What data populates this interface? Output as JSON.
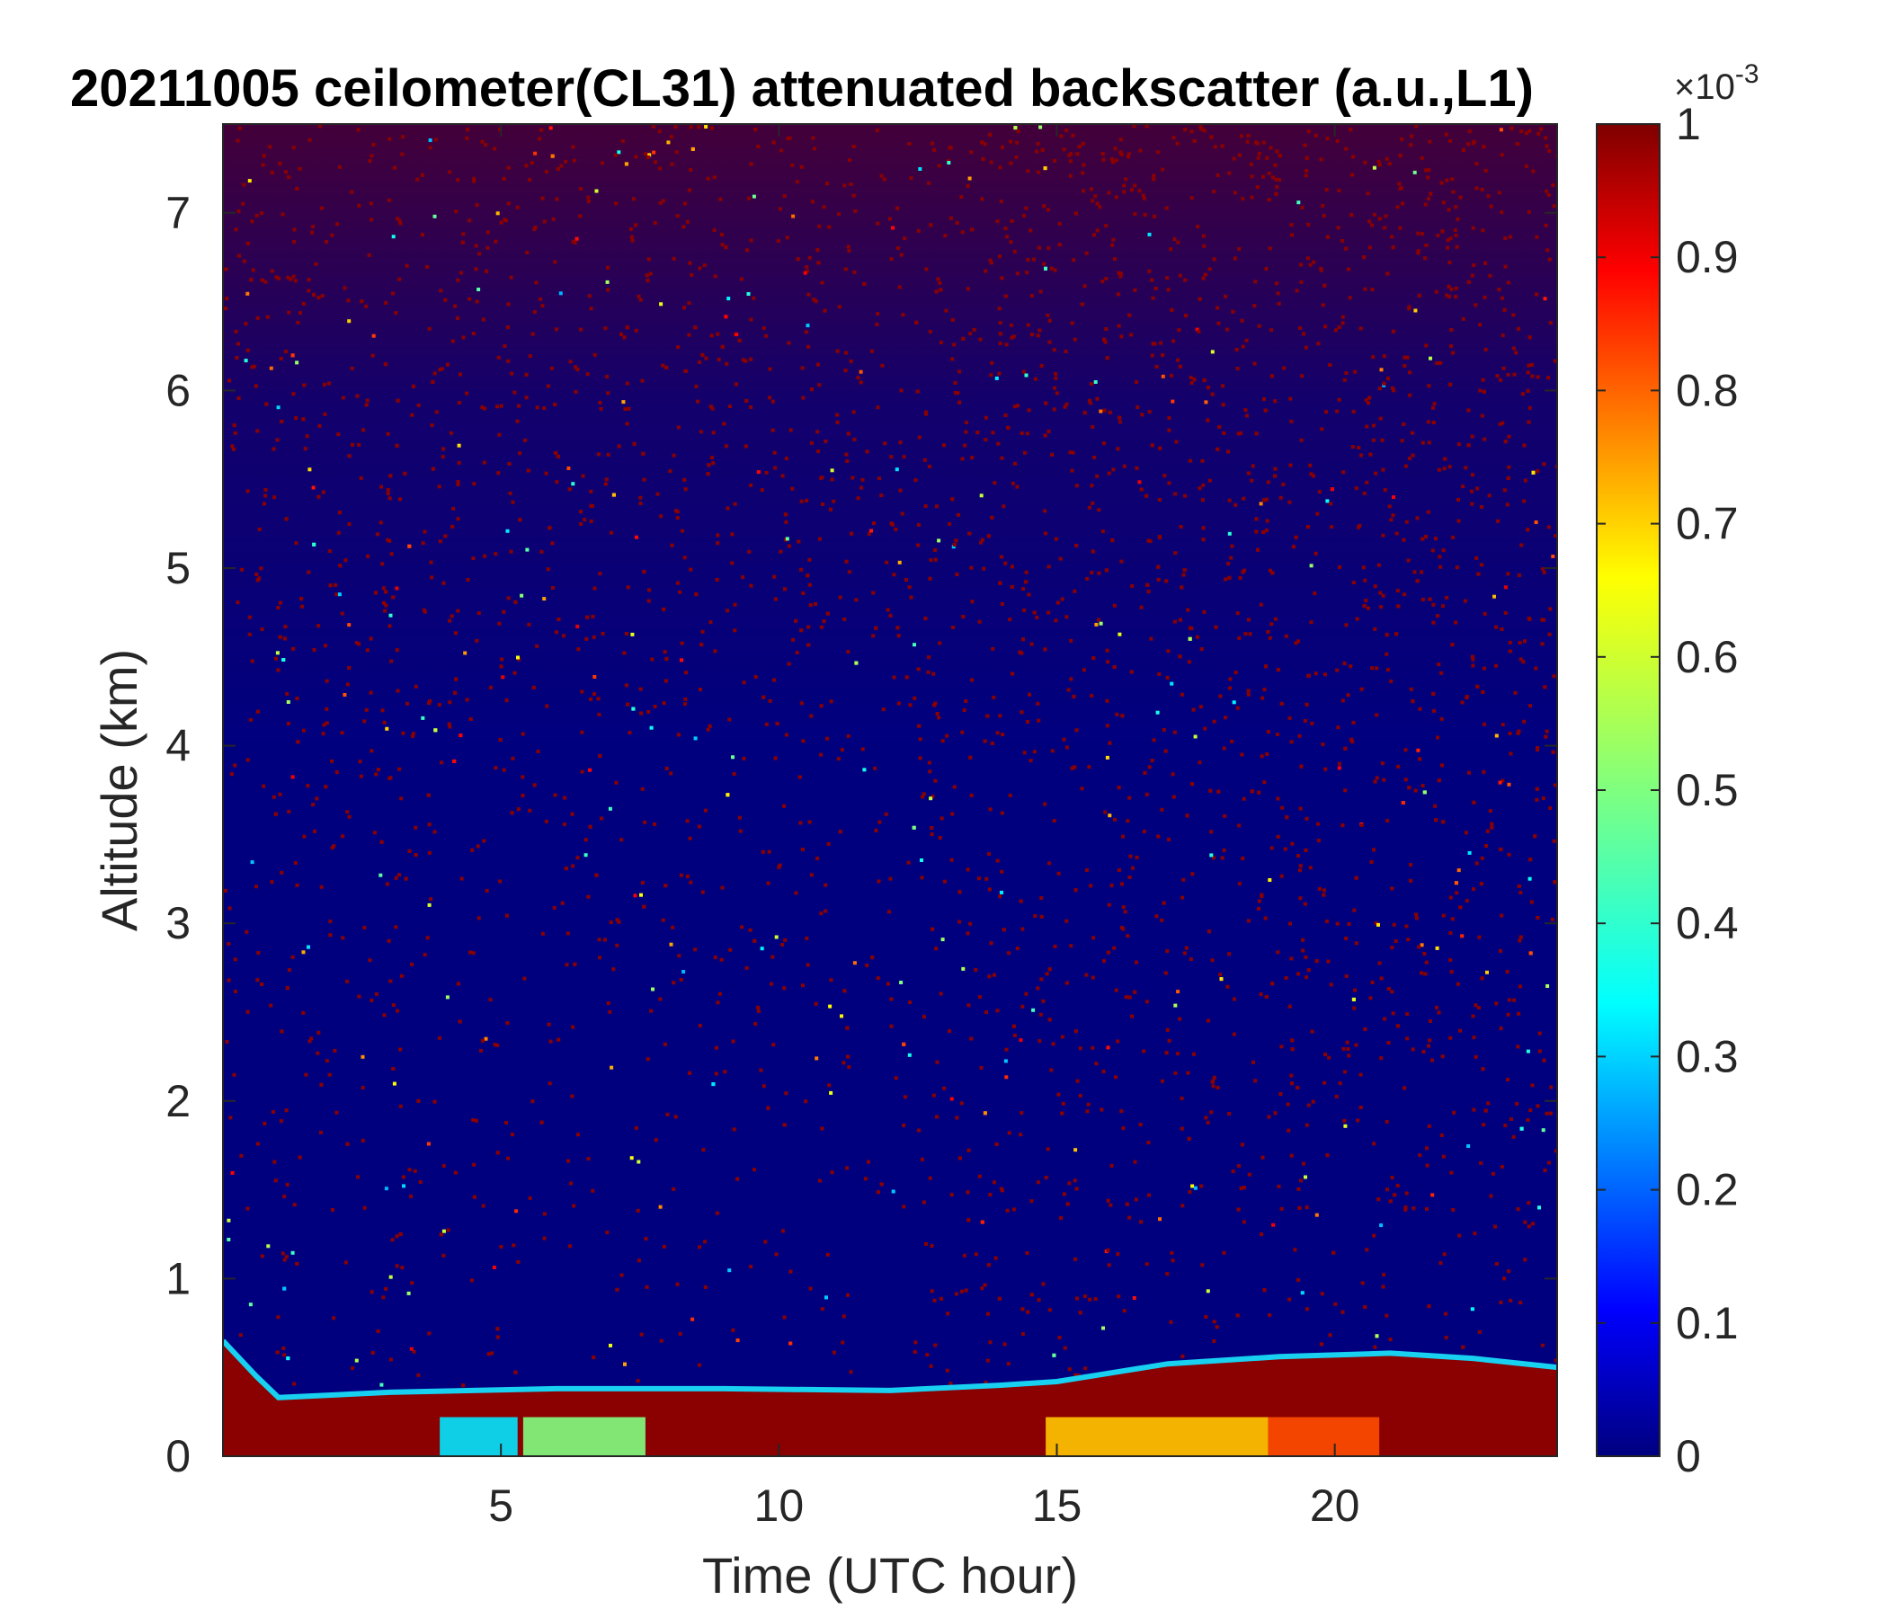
{
  "chart_data": {
    "type": "heatmap",
    "title": "20211005 ceilometer(CL31) attenuated backscatter (a.u.,L1)",
    "xlabel": "Time (UTC hour)",
    "ylabel": "Altitude (km)",
    "xlim": [
      0,
      24
    ],
    "ylim": [
      0,
      7.5
    ],
    "xticks": [
      5,
      10,
      15,
      20
    ],
    "yticks": [
      0,
      1,
      2,
      3,
      4,
      5,
      6,
      7
    ],
    "colorbar": {
      "colormap": "jet",
      "range": [
        0,
        1
      ],
      "ticks": [
        0,
        0.1,
        0.2,
        0.3,
        0.4,
        0.5,
        0.6,
        0.7,
        0.8,
        0.9,
        1
      ],
      "exponent_label": "×10",
      "exponent_power": "-3"
    },
    "features": {
      "surface_layer_top_km": [
        {
          "t": 0.0,
          "h": 0.65
        },
        {
          "t": 0.6,
          "h": 0.45
        },
        {
          "t": 1.0,
          "h": 0.33
        },
        {
          "t": 3.0,
          "h": 0.36
        },
        {
          "t": 6.0,
          "h": 0.38
        },
        {
          "t": 9.0,
          "h": 0.38
        },
        {
          "t": 12.0,
          "h": 0.37
        },
        {
          "t": 14.0,
          "h": 0.4
        },
        {
          "t": 15.0,
          "h": 0.42
        },
        {
          "t": 17.0,
          "h": 0.52
        },
        {
          "t": 19.0,
          "h": 0.56
        },
        {
          "t": 21.0,
          "h": 0.58
        },
        {
          "t": 22.5,
          "h": 0.55
        },
        {
          "t": 24.0,
          "h": 0.5
        }
      ],
      "near_surface_enhancement": [
        {
          "t_start": 3.9,
          "t_end": 5.3,
          "value": 0.35
        },
        {
          "t_start": 5.4,
          "t_end": 7.6,
          "value": 0.5
        },
        {
          "t_start": 14.8,
          "t_end": 18.8,
          "value": 0.68
        },
        {
          "t_start": 18.8,
          "t_end": 20.8,
          "value": 0.8
        }
      ]
    }
  }
}
